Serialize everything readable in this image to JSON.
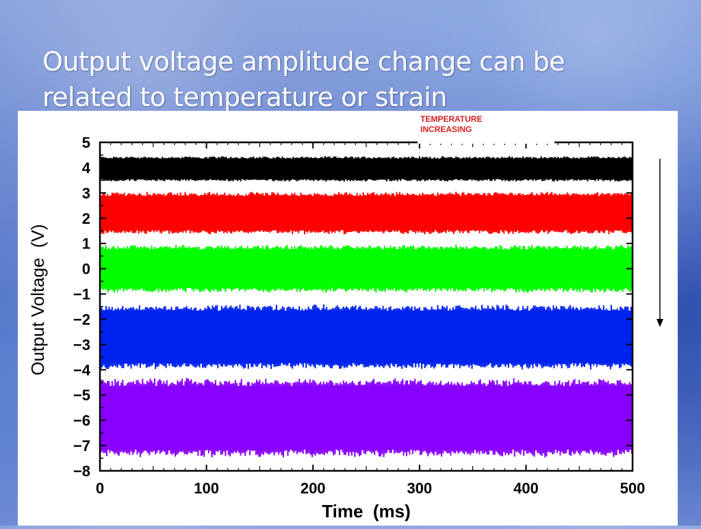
{
  "slide": {
    "title_line1": "Output voltage amplitude change can be",
    "title_line2": "related to temperature or strain"
  },
  "annotation": {
    "line1": "TEMPERATURE",
    "line2": "INCREASING",
    "color": "#d42020"
  },
  "chart_data": {
    "type": "line",
    "title": "",
    "xlabel": "Time  (ms)",
    "ylabel": "Output Voltage  (V)",
    "xlim": [
      0,
      500
    ],
    "ylim": [
      -8,
      5
    ],
    "xticks": [
      "0",
      "100",
      "200",
      "300",
      "400",
      "500"
    ],
    "yticks": [
      "5",
      "4",
      "3",
      "2",
      "1",
      "0",
      "−1",
      "−2",
      "−3",
      "−4",
      "−5",
      "−6",
      "−7",
      "−8"
    ],
    "series": [
      {
        "color": "#000000",
        "center": 3.95,
        "amplitude": 0.45
      },
      {
        "color": "#ff0000",
        "center": 2.2,
        "amplitude": 0.75
      },
      {
        "color": "#00ff00",
        "center": 0.0,
        "amplitude": 0.85
      },
      {
        "color": "#0022ee",
        "center": -2.7,
        "amplitude": 1.15
      },
      {
        "color": "#8800ff",
        "center": -5.9,
        "amplitude": 1.4
      }
    ],
    "grid": false,
    "legend": "none"
  }
}
